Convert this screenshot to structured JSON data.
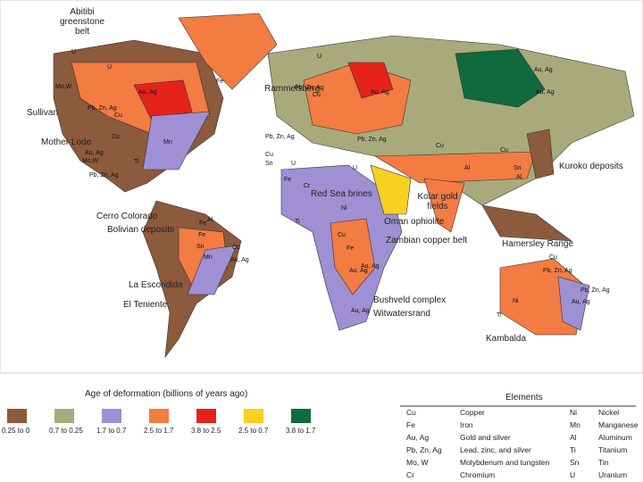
{
  "map": {
    "labels": [
      "Abitibi greenstone belt",
      "Rammelsberg",
      "Sullivan",
      "Mother Lode",
      "Cerro Colorado",
      "Bolivian deposits",
      "La Escondida",
      "El Teniente",
      "Red Sea brines",
      "Kolar gold fields",
      "Oman ophiolite",
      "Zambian copper belt",
      "Bushveld complex",
      "Witwatersrand",
      "Kuroko deposits",
      "Hamersley Range",
      "Kambalda"
    ],
    "symbols": [
      "Fe",
      "U",
      "Mo,W",
      "U",
      "Au, Ag",
      "Pb, Zn, Ag",
      "Cu",
      "Mn",
      "Au, Ag",
      "Mo,W",
      "Pb, Zn, Ag",
      "Ti",
      "Cu",
      "Pb, Zn, Ag",
      "Cu",
      "Pb, Zn, Ag",
      "Sn",
      "Cu",
      "U",
      "Fe",
      "U",
      "Au, Ag",
      "Au, Ag",
      "U",
      "Cu",
      "Sn",
      "Cu",
      "Al",
      "Ni",
      "Fe",
      "Mn",
      "Ti",
      "Al",
      "Fe",
      "Sn",
      "Au, Ag",
      "Cu",
      "Au, Ag",
      "Au, Ag",
      "Fe",
      "Cu",
      "Au, Ag",
      "Pb, Zn, Ag",
      "Cu",
      "Ni",
      "Ti",
      "Au, Ag",
      "Pb, Zn, Ag",
      "Al",
      "Cr",
      "Pb, Zn, Ag",
      "Au, Ag"
    ]
  },
  "legend": {
    "title": "Age of deformation (billions of years ago)",
    "items": [
      {
        "label": "0.25 to 0",
        "color": "#8c5a3c"
      },
      {
        "label": "0.7 to 0.25",
        "color": "#a9aa7c"
      },
      {
        "label": "1.7 to 0.7",
        "color": "#9e90d2"
      },
      {
        "label": "2.5 to 1.7",
        "color": "#f27c42"
      },
      {
        "label": "3.8 to 2.5",
        "color": "#e5231b"
      },
      {
        "label": "2.5 to 0.7",
        "color": "#f6d11f"
      },
      {
        "label": "3.8 to 1.7",
        "color": "#0f6b3b"
      }
    ]
  },
  "elements": {
    "title": "Elements",
    "rows": [
      [
        "Cu",
        "Copper",
        "Ni",
        "Nickel"
      ],
      [
        "Fe",
        "Iron",
        "Mn",
        "Manganese"
      ],
      [
        "Au, Ag",
        "Gold and silver",
        "Al",
        "Aluminum"
      ],
      [
        "Pb, Zn, Ag",
        "Lead, zinc, and silver",
        "Ti",
        "Titanium"
      ],
      [
        "Mo, W",
        "Molybdenum and tungsten",
        "Sn",
        "Tin"
      ],
      [
        "Cr",
        "Chromium",
        "U",
        "Uranium"
      ]
    ]
  }
}
